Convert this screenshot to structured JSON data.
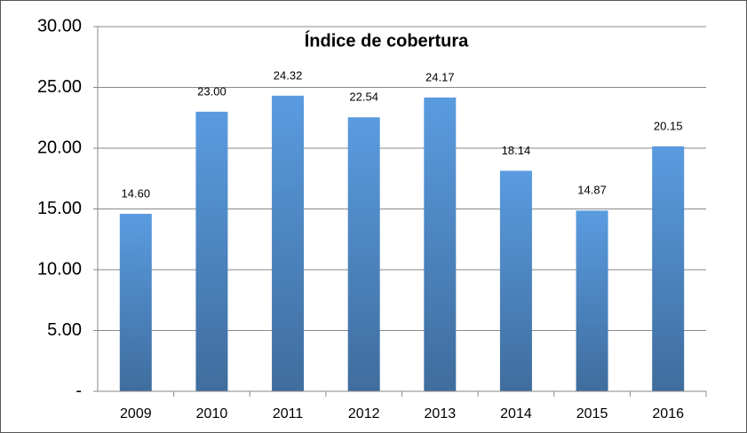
{
  "chart_data": {
    "type": "bar",
    "title": "Índice de cobertura",
    "categories": [
      "2009",
      "2010",
      "2011",
      "2012",
      "2013",
      "2014",
      "2015",
      "2016"
    ],
    "values": [
      14.6,
      23,
      24.32,
      22.54,
      24.17,
      18.14,
      14.87,
      20.15
    ],
    "value_labels": [
      "14.60",
      "23.00",
      "24.32",
      "22.54",
      "24.17",
      "18.14",
      "14.87",
      "20.15"
    ],
    "color": "#5a9be0",
    "ylim": [
      0,
      30
    ],
    "yticks": [
      {
        "value": 0,
        "label": "-"
      },
      {
        "value": 5,
        "label": "5.00"
      },
      {
        "value": 10,
        "label": "10.00"
      },
      {
        "value": 15,
        "label": "15.00"
      },
      {
        "value": 20,
        "label": "20.00"
      },
      {
        "value": 25,
        "label": "25.00"
      },
      {
        "value": 30,
        "label": "30.00"
      }
    ],
    "grid": true
  }
}
